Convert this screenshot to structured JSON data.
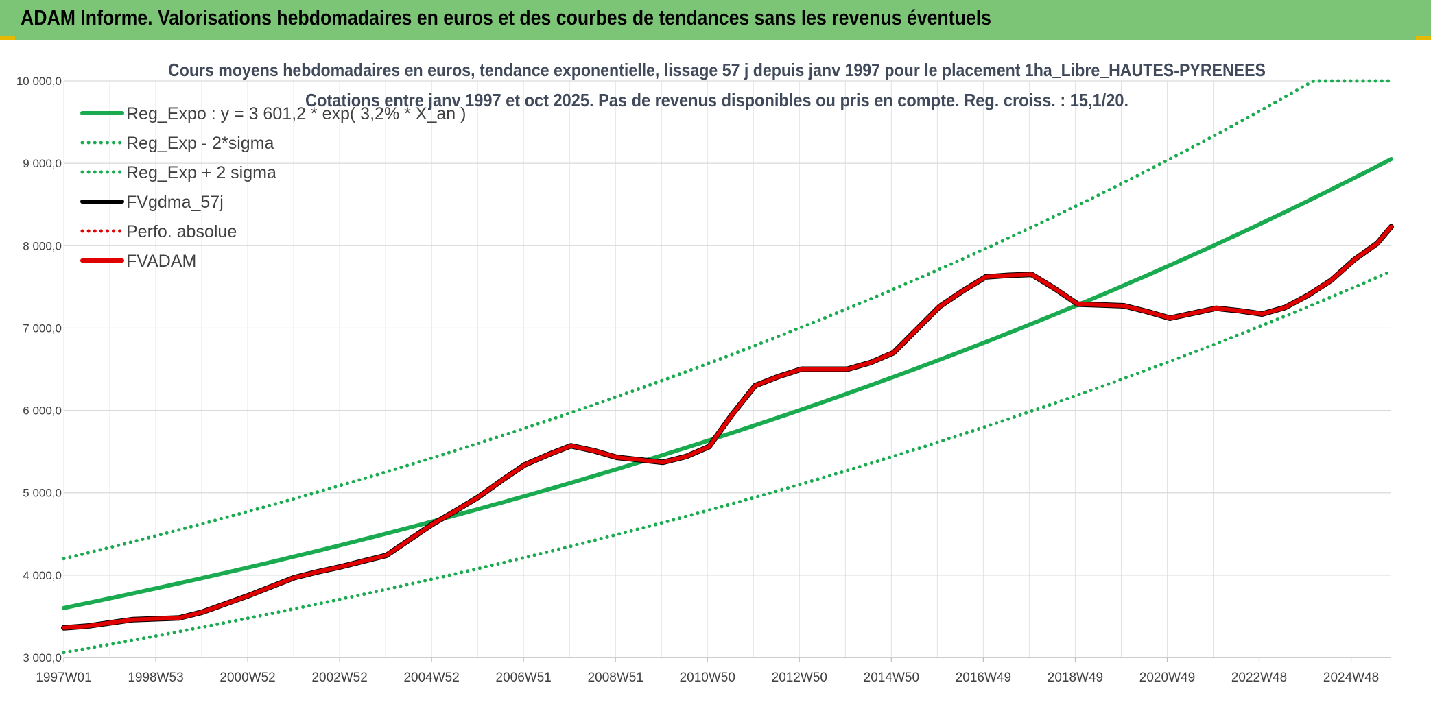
{
  "header": {
    "title": "ADAM Informe. Valorisations hebdomadaires en euros et des courbes de tendances sans les revenus éventuels"
  },
  "chart_data": {
    "type": "line",
    "title": "Cours moyens hebdomadaires en euros, tendance exponentielle, lissage 57 j depuis janv 1997 pour le placement 1ha_Libre_HAUTES-PYRENEES",
    "subtitle": "Cotations entre janv 1997 et oct 2025. Pas de revenus disponibles ou pris en compte. Reg. croiss. : 15,1/20.",
    "xlabel": "",
    "ylabel": "",
    "ylim": [
      3000,
      10000
    ],
    "yticks": [
      3000,
      4000,
      5000,
      6000,
      7000,
      8000,
      9000,
      10000
    ],
    "ytick_labels": [
      "3 000,0",
      "4 000,0",
      "5 000,0",
      "6 000,0",
      "7 000,0",
      "8 000,0",
      "9 000,0",
      "10 000,0"
    ],
    "xlim": [
      1997.0,
      2025.8
    ],
    "xtick_labels": [
      "1997W01",
      "1998W53",
      "2000W52",
      "2002W52",
      "2004W52",
      "2006W51",
      "2008W51",
      "2010W50",
      "2012W50",
      "2014W50",
      "2016W49",
      "2018W49",
      "2020W49",
      "2022W48",
      "2024W48"
    ],
    "grid": true,
    "legend_position": "top-left",
    "legend": [
      {
        "name": "Reg_Expo : y = 3 601,2 * exp( 3,2% *  X_an )",
        "color": "#1aaa4f",
        "style": "solid"
      },
      {
        "name": "Reg_Exp - 2*sigma",
        "color": "#1aaa4f",
        "style": "dotted"
      },
      {
        "name": "Reg_Exp + 2 sigma",
        "color": "#1aaa4f",
        "style": "dotted"
      },
      {
        "name": "FVgdma_57j",
        "color": "#000000",
        "style": "solid"
      },
      {
        "name": "Perfo. absolue",
        "color": "#e00000",
        "style": "dotted"
      },
      {
        "name": "FVADAM",
        "color": "#e00000",
        "style": "solid"
      }
    ],
    "series": [
      {
        "name": "Reg_Expo",
        "type": "exponential",
        "a": 3601.2,
        "rate": 0.032,
        "color": "#1aaa4f",
        "style": "solid"
      },
      {
        "name": "Reg_Exp - 2*sigma",
        "type": "exponential",
        "a": 3060,
        "rate": 0.032,
        "color": "#1aaa4f",
        "style": "dotted"
      },
      {
        "name": "Reg_Exp + 2 sigma",
        "type": "exponential",
        "a": 4200,
        "rate": 0.032,
        "color": "#1aaa4f",
        "style": "dotted",
        "cap": 10000
      },
      {
        "name": "FVgdma_57j",
        "color": "#000000",
        "style": "solid",
        "x": [
          1997.0,
          1997.5,
          1998.0,
          1998.5,
          1999.0,
          1999.5,
          2000.0,
          2000.5,
          2001.0,
          2001.5,
          2002.0,
          2002.5,
          2003.0,
          2003.5,
          2004.0,
          2004.5,
          2005.0,
          2005.5,
          2006.0,
          2006.5,
          2007.0,
          2007.5,
          2008.0,
          2008.5,
          2009.0,
          2009.5,
          2010.0,
          2010.5,
          2011.0,
          2011.5,
          2012.0,
          2012.5,
          2013.0,
          2013.5,
          2014.0,
          2014.5,
          2015.0,
          2015.5,
          2016.0,
          2016.5,
          2017.0,
          2017.5,
          2018.0,
          2018.5,
          2019.0,
          2019.5,
          2020.0,
          2020.5,
          2021.0,
          2021.5,
          2022.0,
          2022.5,
          2023.0,
          2023.5,
          2024.0,
          2024.5,
          2025.0,
          2025.5,
          2025.8
        ],
        "y": [
          3360,
          3380,
          3420,
          3460,
          3470,
          3480,
          3550,
          3650,
          3750,
          3860,
          3970,
          4040,
          4100,
          4170,
          4240,
          4430,
          4620,
          4780,
          4950,
          5150,
          5340,
          5460,
          5570,
          5510,
          5430,
          5400,
          5370,
          5440,
          5560,
          5950,
          6300,
          6410,
          6500,
          6500,
          6500,
          6580,
          6700,
          6980,
          7260,
          7450,
          7620,
          7640,
          7650,
          7480,
          7290,
          7280,
          7270,
          7200,
          7120,
          7180,
          7240,
          7210,
          7170,
          7250,
          7400,
          7580,
          7830,
          8030,
          8230
        ]
      },
      {
        "name": "FVADAM",
        "color": "#e00000",
        "style": "solid",
        "x": [
          1997.0,
          1997.5,
          1998.0,
          1998.5,
          1999.0,
          1999.5,
          2000.0,
          2000.5,
          2001.0,
          2001.5,
          2002.0,
          2002.5,
          2003.0,
          2003.5,
          2004.0,
          2004.5,
          2005.0,
          2005.5,
          2006.0,
          2006.5,
          2007.0,
          2007.5,
          2008.0,
          2008.5,
          2009.0,
          2009.5,
          2010.0,
          2010.5,
          2011.0,
          2011.5,
          2012.0,
          2012.5,
          2013.0,
          2013.5,
          2014.0,
          2014.5,
          2015.0,
          2015.5,
          2016.0,
          2016.5,
          2017.0,
          2017.5,
          2018.0,
          2018.5,
          2019.0,
          2019.5,
          2020.0,
          2020.5,
          2021.0,
          2021.5,
          2022.0,
          2022.5,
          2023.0,
          2023.5,
          2024.0,
          2024.5,
          2025.0,
          2025.5,
          2025.8
        ],
        "y": [
          3360,
          3380,
          3420,
          3460,
          3470,
          3480,
          3550,
          3650,
          3750,
          3860,
          3970,
          4040,
          4100,
          4170,
          4240,
          4430,
          4620,
          4780,
          4950,
          5150,
          5340,
          5460,
          5570,
          5510,
          5430,
          5400,
          5370,
          5440,
          5560,
          5950,
          6300,
          6410,
          6500,
          6500,
          6500,
          6580,
          6700,
          6980,
          7260,
          7450,
          7620,
          7640,
          7650,
          7480,
          7290,
          7280,
          7270,
          7200,
          7120,
          7180,
          7240,
          7210,
          7170,
          7250,
          7400,
          7580,
          7830,
          8030,
          8230
        ]
      }
    ]
  }
}
